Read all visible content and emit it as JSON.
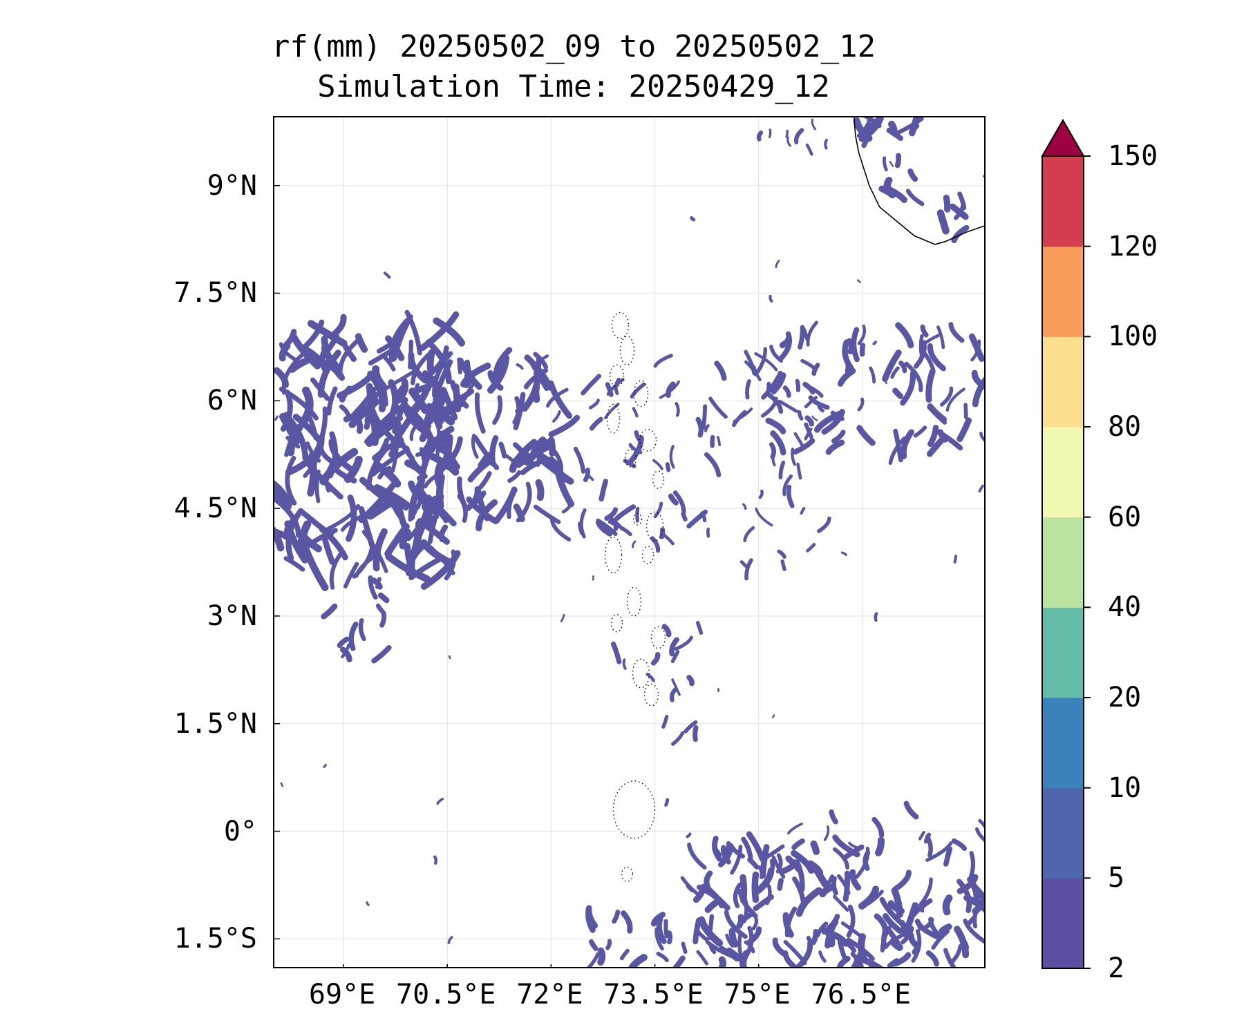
{
  "title": {
    "line1": "rf(mm) 20250502_09 to 20250502_12",
    "line2": "Simulation Time: 20250429_12"
  },
  "map": {
    "lon_range": [
      68.0,
      78.3
    ],
    "lat_range": [
      -1.93,
      9.95
    ],
    "lat_ticks": [
      {
        "value": 9.0,
        "label": "9°N"
      },
      {
        "value": 7.5,
        "label": "7.5°N"
      },
      {
        "value": 6.0,
        "label": "6°N"
      },
      {
        "value": 4.5,
        "label": "4.5°N"
      },
      {
        "value": 3.0,
        "label": "3°N"
      },
      {
        "value": 1.5,
        "label": "1.5°N"
      },
      {
        "value": 0.0,
        "label": "0°"
      },
      {
        "value": -1.5,
        "label": "1.5°S"
      }
    ],
    "lon_ticks": [
      {
        "value": 69.0,
        "label": "69°E"
      },
      {
        "value": 70.5,
        "label": "70.5°E"
      },
      {
        "value": 72.0,
        "label": "72°E"
      },
      {
        "value": 73.5,
        "label": "73.5°E"
      },
      {
        "value": 75.0,
        "label": "75°E"
      },
      {
        "value": 76.5,
        "label": "76.5°E"
      }
    ],
    "grid": true,
    "features": [
      "India coastline (top-right)",
      "Maldives atolls (dotted outlines)"
    ],
    "rain_color": "#5956a4"
  },
  "colorbar": {
    "levels": [
      "2",
      "5",
      "10",
      "20",
      "40",
      "60",
      "80",
      "100",
      "120",
      "150"
    ],
    "colors": [
      "#5c4fa3",
      "#4d66ae",
      "#3a82bc",
      "#63bda9",
      "#bde3a0",
      "#f2f8b0",
      "#fbdf8e",
      "#f99b59",
      "#d53e4f"
    ],
    "extend_color": "#9e0142",
    "extend": "max"
  }
}
